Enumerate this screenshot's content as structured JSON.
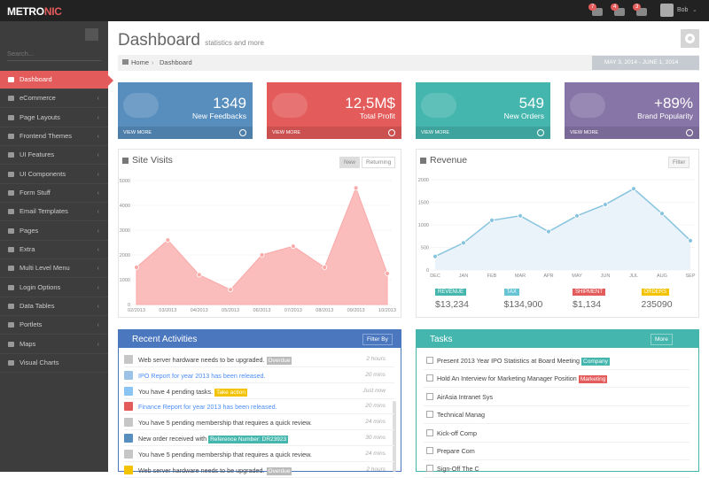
{
  "header": {
    "brand_main": "METRO",
    "brand_accent": "NIC",
    "badges": [
      "7",
      "4",
      "3"
    ],
    "user": "Bob"
  },
  "sidebar": {
    "search": "Search...",
    "items": [
      {
        "label": "Dashboard",
        "active": true,
        "submenu": false
      },
      {
        "label": "eCommerce",
        "submenu": true
      },
      {
        "label": "Page Layouts",
        "submenu": true
      },
      {
        "label": "Frontend Themes",
        "submenu": true
      },
      {
        "label": "UI Features",
        "submenu": true
      },
      {
        "label": "UI Components",
        "submenu": true
      },
      {
        "label": "Form Stuff",
        "submenu": true
      },
      {
        "label": "Email Templates",
        "submenu": true
      },
      {
        "label": "Pages",
        "submenu": true
      },
      {
        "label": "Extra",
        "submenu": true
      },
      {
        "label": "Multi Level Menu",
        "submenu": true
      },
      {
        "label": "Login Options",
        "submenu": true
      },
      {
        "label": "Data Tables",
        "submenu": true
      },
      {
        "label": "Portlets",
        "submenu": true
      },
      {
        "label": "Maps",
        "submenu": true
      },
      {
        "label": "Visual Charts",
        "submenu": false
      }
    ]
  },
  "page": {
    "title": "Dashboard",
    "subtitle": "statistics and more",
    "breadcrumb": [
      "Home",
      "Dashboard"
    ],
    "date_range": "MAY 3, 2014 - JUNE 1, 2014"
  },
  "stats": [
    {
      "value": "1349",
      "label": "New Feedbacks",
      "link": "VIEW MORE",
      "color": "#578ebe"
    },
    {
      "value": "12,5M$",
      "label": "Total Profit",
      "link": "VIEW MORE",
      "color": "#e35b5a"
    },
    {
      "value": "549",
      "label": "New Orders",
      "link": "VIEW MORE",
      "color": "#44b6ae"
    },
    {
      "value": "+89%",
      "label": "Brand Popularity",
      "link": "VIEW MORE",
      "color": "#8775a7"
    }
  ],
  "chart_data": [
    {
      "type": "area",
      "title": "Site Visits",
      "tabs": [
        "New",
        "Returning"
      ],
      "categories": [
        "02/2013",
        "03/2013",
        "04/2013",
        "05/2013",
        "06/2013",
        "07/2013",
        "08/2013",
        "09/2013",
        "10/2013"
      ],
      "values": [
        1500,
        2600,
        1200,
        600,
        2000,
        2350,
        1500,
        4700,
        1250
      ],
      "color": "#f9a9a8",
      "ylim": [
        0,
        5000
      ],
      "yticks": [
        0,
        1000,
        2000,
        3000,
        4000,
        5000
      ],
      "grid": true
    },
    {
      "type": "line",
      "title": "Revenue",
      "button": "Filter",
      "categories": [
        "DEC",
        "JAN",
        "FEB",
        "MAR",
        "APR",
        "MAY",
        "JUN",
        "JUL",
        "AUG",
        "SEP"
      ],
      "values": [
        300,
        600,
        1100,
        1200,
        850,
        1200,
        1450,
        1800,
        1250,
        650
      ],
      "color": "#87c4de",
      "ylim": [
        0,
        2000
      ],
      "yticks": [
        0,
        500,
        1000,
        1500,
        2000
      ],
      "grid": true
    }
  ],
  "revenue_summary": [
    {
      "label": "REVENUE",
      "value": "$13,234",
      "color": "#44b6ae"
    },
    {
      "label": "TAX",
      "value": "$134,900",
      "color": "#67c4d4"
    },
    {
      "label": "SHIPMENT",
      "value": "$1,134",
      "color": "#e35b5a"
    },
    {
      "label": "ORDERS",
      "value": "235090",
      "color": "#f3c200"
    }
  ],
  "activities": {
    "title": "Recent Activities",
    "button": "Filter By",
    "items": [
      {
        "text": "Web server hardware needs to be upgraded.",
        "tag": "Overdue",
        "tag_color": "#bbbbbb",
        "time": "2 hours",
        "icon": "#c6c6c6"
      },
      {
        "text": "IPO Report for year 2013 has been released.",
        "time": "20 mins",
        "icon": "#9cc3e6",
        "link": true
      },
      {
        "text": "You have 4 pending tasks.",
        "tag": "Take action",
        "tag_color": "#f3c200",
        "time": "Just now",
        "icon": "#89c4f4"
      },
      {
        "text": "Finance Report for year 2013 has been released.",
        "time": "20 mins",
        "icon": "#e35b5a",
        "link": true
      },
      {
        "text": "You have 5 pending membership that requires a quick review.",
        "time": "24 mins",
        "icon": "#c6c6c6"
      },
      {
        "text": "New order received with",
        "tag": "Reference Number: DR23923",
        "tag_color": "#44b6ae",
        "time": "30 mins",
        "icon": "#578ebe"
      },
      {
        "text": "You have 5 pending membership that requires a quick review.",
        "time": "24 mins",
        "icon": "#c6c6c6"
      },
      {
        "text": "Web server hardware needs to be upgraded.",
        "tag": "Overdue",
        "tag_color": "#bbbbbb",
        "time": "2 hours",
        "icon": "#f3c200"
      }
    ]
  },
  "tasks": {
    "title": "Tasks",
    "button": "More",
    "items": [
      {
        "text": "Present 2013 Year IPO Statistics at Board Meeting",
        "tag": "Company",
        "tag_color": "#44b6ae"
      },
      {
        "text": "Hold An Interview for Marketing Manager Position",
        "tag": "Marketing",
        "tag_color": "#e35b5a"
      },
      {
        "text": "AirAsia Intranet Sys"
      },
      {
        "text": "Technical Manag"
      },
      {
        "text": "Kick-off Comp"
      },
      {
        "text": "Prepare Com"
      },
      {
        "text": "Sign-Off The C"
      }
    ]
  }
}
